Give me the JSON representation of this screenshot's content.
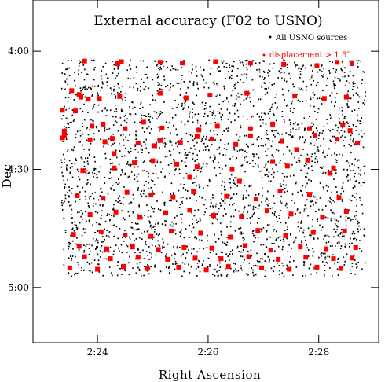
{
  "chart_data": {
    "type": "scatter",
    "title": "External accuracy  (F02 to USNO)",
    "xlabel": "Right Ascension",
    "ylabel": "Dec",
    "x_unit": "RA (h:mm)",
    "y_unit": "Dec (deg:arcmin)",
    "xlim": [
      "2:22:50",
      "2:29:05"
    ],
    "ylim": [
      "3:47:00",
      "5:14:00"
    ],
    "y_inverted": true,
    "x_ticks": [
      "2:24",
      "2:26",
      "2:28"
    ],
    "y_ticks": [
      "4:00",
      "4:30",
      "5:00"
    ],
    "grid": false,
    "legend_position": "top-right",
    "legend": [
      {
        "label": "All USNO sources",
        "color": "#000000"
      },
      {
        "label": "displacement > 1.5″",
        "color": "#ff0000"
      }
    ],
    "field_ra_range": [
      "2:23:20",
      "2:28:50"
    ],
    "field_dec_range": [
      "4:02:00",
      "4:57:00"
    ],
    "series": [
      {
        "name": "displacement > 1.5″",
        "color": "#ff0000",
        "x": [
          "2:23:46",
          "2:24:26",
          "2:24:22",
          "2:25:08",
          "2:25:32",
          "2:26:08",
          "2:26:46",
          "2:27:22",
          "2:27:58",
          "2:28:20",
          "2:28:36",
          "2:23:32",
          "2:23:40",
          "2:23:42",
          "2:23:50",
          "2:24:02",
          "2:24:24",
          "2:25:08",
          "2:25:36",
          "2:26:02",
          "2:26:42",
          "2:27:34",
          "2:28:06",
          "2:28:30",
          "2:23:22",
          "2:23:36",
          "2:23:24",
          "2:23:54",
          "2:24:06",
          "2:24:30",
          "2:24:50",
          "2:25:10",
          "2:25:50",
          "2:26:10",
          "2:26:46",
          "2:27:10",
          "2:27:50",
          "2:28:26",
          "2:28:34",
          "2:23:24",
          "2:23:22",
          "2:23:52",
          "2:24:08",
          "2:24:16",
          "2:24:44",
          "2:25:08",
          "2:25:30",
          "2:25:48",
          "2:26:04",
          "2:26:30",
          "2:26:46",
          "2:27:20",
          "2:27:56",
          "2:28:20",
          "2:28:42",
          "2:23:44",
          "2:24:18",
          "2:24:40",
          "2:25:00",
          "2:25:26",
          "2:25:48",
          "2:26:26",
          "2:27:10",
          "2:27:26",
          "2:27:48",
          "2:28:16",
          "2:23:38",
          "2:24:06",
          "2:24:32",
          "2:24:58",
          "2:25:22",
          "2:25:44",
          "2:26:20",
          "2:26:52",
          "2:27:18",
          "2:27:50",
          "2:28:22",
          "2:23:52",
          "2:24:20",
          "2:24:46",
          "2:25:14",
          "2:25:40",
          "2:26:06",
          "2:26:36",
          "2:27:04",
          "2:27:30",
          "2:28:04",
          "2:28:30",
          "2:23:34",
          "2:24:04",
          "2:24:30",
          "2:24:58",
          "2:25:20",
          "2:25:52",
          "2:26:24",
          "2:26:54",
          "2:27:24",
          "2:27:54",
          "2:28:28",
          "2:23:40",
          "2:24:10",
          "2:24:38",
          "2:25:06",
          "2:25:34",
          "2:26:04",
          "2:26:40",
          "2:27:08",
          "2:27:40",
          "2:28:08",
          "2:28:40",
          "2:23:46",
          "2:24:14",
          "2:24:44",
          "2:25:16",
          "2:25:46",
          "2:26:14",
          "2:26:44",
          "2:27:16",
          "2:27:46",
          "2:28:16",
          "2:28:36",
          "2:23:30",
          "2:24:00",
          "2:24:28",
          "2:24:54",
          "2:25:28",
          "2:25:58",
          "2:26:22",
          "2:26:58",
          "2:27:28",
          "2:27:58",
          "2:28:24",
          "2:24:18",
          "2:25:02",
          "2:25:40",
          "2:26:34",
          "2:27:36",
          "2:28:12"
        ],
        "y": [
          "4:02:30",
          "4:02:40",
          "4:03:10",
          "4:02:50",
          "4:03:00",
          "4:02:40",
          "4:03:00",
          "4:03:20",
          "4:03:40",
          "4:02:50",
          "4:03:10",
          "4:10:00",
          "4:11:00",
          "4:11:40",
          "4:12:10",
          "4:12:00",
          "4:11:30",
          "4:10:40",
          "4:11:50",
          "4:11:10",
          "4:10:40",
          "4:11:20",
          "4:12:00",
          "4:11:40",
          "4:15:00",
          "4:15:10",
          "4:20:20",
          "4:19:00",
          "4:18:30",
          "4:19:40",
          "4:18:00",
          "4:19:30",
          "4:20:00",
          "4:19:00",
          "4:19:40",
          "4:18:30",
          "4:19:40",
          "4:18:40",
          "4:20:10",
          "4:21:20",
          "4:22:00",
          "4:22:30",
          "4:23:00",
          "4:22:10",
          "4:23:20",
          "4:22:40",
          "4:23:10",
          "4:21:40",
          "4:22:20",
          "4:23:40",
          "4:21:30",
          "4:22:50",
          "4:21:20",
          "4:22:20",
          "4:23:20",
          "4:30:20",
          "4:29:40",
          "4:28:20",
          "4:27:50",
          "4:28:40",
          "4:29:20",
          "4:30:00",
          "4:28:00",
          "4:29:10",
          "4:27:40",
          "4:29:40",
          "4:36:40",
          "4:37:20",
          "4:35:50",
          "4:36:30",
          "4:37:00",
          "4:35:40",
          "4:36:50",
          "4:37:30",
          "4:35:30",
          "4:36:20",
          "4:37:10",
          "4:41:30",
          "4:40:50",
          "4:42:10",
          "4:41:00",
          "4:40:20",
          "4:41:40",
          "4:42:00",
          "4:40:30",
          "4:41:20",
          "4:42:10",
          "4:40:40",
          "4:46:30",
          "4:45:50",
          "4:46:40",
          "4:47:00",
          "4:45:40",
          "4:46:10",
          "4:47:10",
          "4:45:30",
          "4:46:50",
          "4:46:00",
          "4:45:40",
          "4:49:30",
          "4:50:10",
          "4:49:40",
          "4:50:20",
          "4:49:50",
          "4:50:00",
          "4:49:20",
          "4:50:30",
          "4:49:40",
          "4:50:10",
          "4:49:50",
          "4:52:10",
          "4:52:40",
          "4:52:20",
          "4:52:50",
          "4:52:30",
          "4:52:40",
          "4:52:10",
          "4:52:50",
          "4:52:20",
          "4:52:40",
          "4:52:30",
          "4:55:00",
          "4:55:20",
          "4:54:40",
          "4:55:10",
          "4:54:50",
          "4:55:30",
          "4:54:40",
          "4:55:00",
          "4:55:20",
          "4:54:50",
          "4:55:10",
          "4:26:00",
          "4:24:00",
          "4:32:00",
          "4:33:00",
          "4:25:00",
          "4:31:00"
        ]
      }
    ],
    "background_series": {
      "name": "All USNO sources",
      "color": "#000000",
      "description_count": 2600
    }
  }
}
